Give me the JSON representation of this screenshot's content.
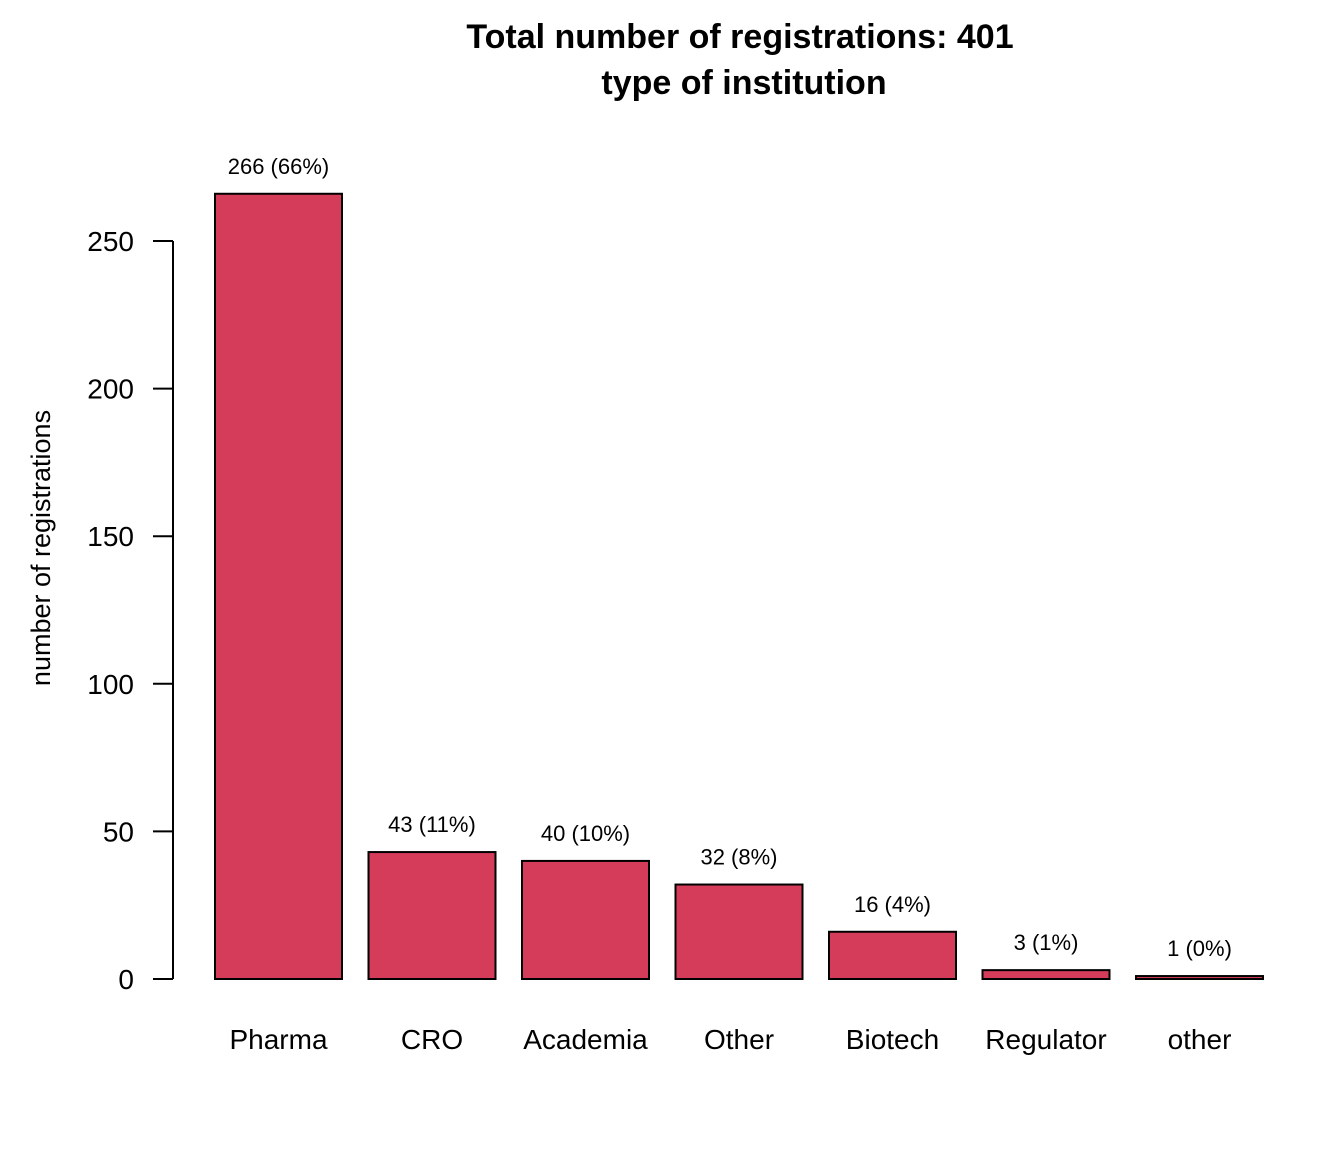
{
  "chart_data": {
    "type": "bar",
    "title": "Total number of registrations: 401",
    "subtitle": "type of institution",
    "xlabel": "",
    "ylabel": "number of registrations",
    "categories": [
      "Pharma",
      "CRO",
      "Academia",
      "Other",
      "Biotech",
      "Regulator",
      "other"
    ],
    "values": [
      266,
      43,
      40,
      32,
      16,
      3,
      1
    ],
    "data_labels": [
      "266 (66%)",
      "43 (11%)",
      "40 (10%)",
      "32 (8%)",
      "16 (4%)",
      "3 (1%)",
      "1 (0%)"
    ],
    "yticks": [
      0,
      50,
      100,
      150,
      200,
      250
    ],
    "ylim": [
      0,
      266
    ],
    "grid": false,
    "bar_color": "#D53C5A"
  }
}
